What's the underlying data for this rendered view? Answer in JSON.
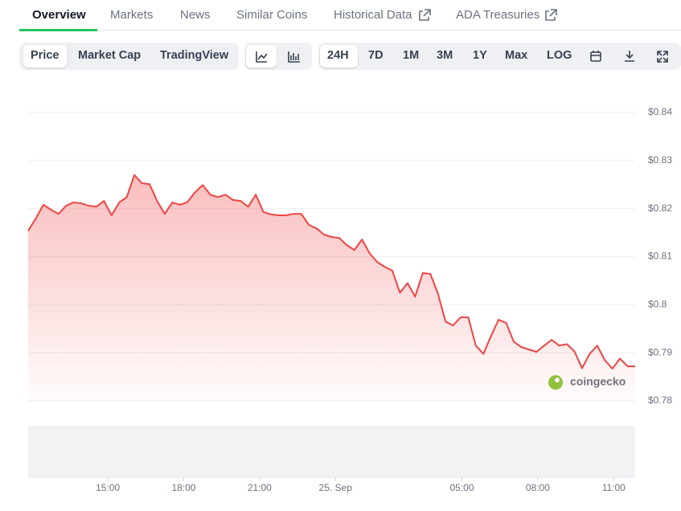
{
  "tabs": [
    "Overview",
    "Markets",
    "News",
    "Similar Coins",
    "Historical Data",
    "ADA Treasuries"
  ],
  "chart_buttons": [
    "Price",
    "Market Cap",
    "TradingView"
  ],
  "range_buttons": [
    "24H",
    "7D",
    "1M",
    "3M",
    "1Y",
    "Max",
    "LOG"
  ],
  "watermark": "coingecko",
  "chart_data": {
    "type": "line",
    "color": "#ef4444",
    "x": [
      11.85,
      12.15,
      12.45,
      12.75,
      13.05,
      13.35,
      13.65,
      13.95,
      14.25,
      14.55,
      14.85,
      15.15,
      15.45,
      15.75,
      16.05,
      16.35,
      16.65,
      16.95,
      17.25,
      17.55,
      17.85,
      18.15,
      18.45,
      18.75,
      19.05,
      19.35,
      19.65,
      19.95,
      20.25,
      20.55,
      20.85,
      21.15,
      21.45,
      21.75,
      22.05,
      22.35,
      22.65,
      22.95,
      23.25,
      23.55,
      23.85,
      24.15,
      24.45,
      24.75,
      25.05,
      25.35,
      25.65,
      25.95,
      26.25,
      26.55,
      26.85,
      27.15,
      27.45,
      27.75,
      28.05,
      28.35,
      28.65,
      28.95,
      29.25,
      29.55,
      29.85,
      30.15,
      30.45,
      30.75,
      31.05,
      31.35,
      31.65,
      31.95,
      32.25,
      32.55,
      32.85,
      33.15,
      33.45,
      33.75,
      34.05,
      34.35,
      34.65,
      34.95,
      35.25,
      35.55,
      35.85
    ],
    "values": [
      0.8154,
      0.8179,
      0.8208,
      0.8198,
      0.8189,
      0.8206,
      0.8213,
      0.8211,
      0.8206,
      0.8204,
      0.8216,
      0.8186,
      0.8213,
      0.8224,
      0.827,
      0.8253,
      0.8251,
      0.8216,
      0.8189,
      0.8213,
      0.8208,
      0.8214,
      0.8234,
      0.8249,
      0.8229,
      0.8224,
      0.8229,
      0.8218,
      0.8216,
      0.8204,
      0.8229,
      0.8193,
      0.8188,
      0.8186,
      0.8186,
      0.8189,
      0.8189,
      0.8166,
      0.8159,
      0.8146,
      0.8141,
      0.8139,
      0.8124,
      0.8114,
      0.8136,
      0.8107,
      0.8089,
      0.8079,
      0.8071,
      0.8025,
      0.8045,
      0.8017,
      0.8066,
      0.8064,
      0.8024,
      0.7965,
      0.7957,
      0.7974,
      0.7974,
      0.7915,
      0.7898,
      0.7935,
      0.7969,
      0.7962,
      0.7923,
      0.7912,
      0.7907,
      0.7902,
      0.7915,
      0.7927,
      0.7915,
      0.7918,
      0.7903,
      0.7868,
      0.7898,
      0.7915,
      0.7885,
      0.7867,
      0.7888,
      0.7872,
      0.7872
    ],
    "xlim": [
      11.85,
      35.85
    ],
    "xticks": [
      {
        "value": 15,
        "label": "15:00"
      },
      {
        "value": 18,
        "label": "18:00"
      },
      {
        "value": 21,
        "label": "21:00"
      },
      {
        "value": 24,
        "label": "25. Sep"
      },
      {
        "value": 29,
        "label": "05:00"
      },
      {
        "value": 32,
        "label": "08:00"
      },
      {
        "value": 35,
        "label": "11:00"
      }
    ],
    "ylim": [
      0.78,
      0.84
    ],
    "yticks": [
      {
        "value": 0.78,
        "label": "$0.78"
      },
      {
        "value": 0.79,
        "label": "$0.79"
      },
      {
        "value": 0.8,
        "label": "$0.8"
      },
      {
        "value": 0.81,
        "label": "$0.81"
      },
      {
        "value": 0.82,
        "label": "$0.82"
      },
      {
        "value": 0.83,
        "label": "$0.83"
      },
      {
        "value": 0.84,
        "label": "$0.84"
      }
    ],
    "grid": true
  }
}
